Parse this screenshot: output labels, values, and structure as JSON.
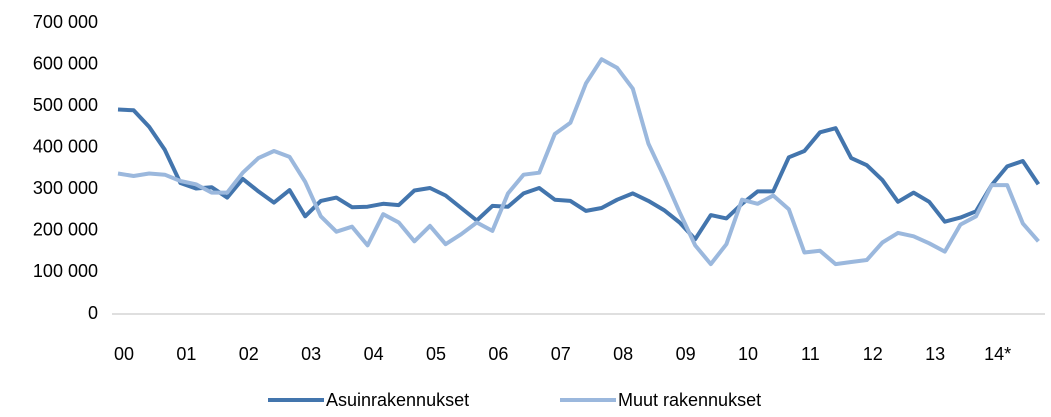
{
  "chart_data": {
    "type": "line",
    "categories": [
      "00",
      null,
      null,
      null,
      "01",
      null,
      null,
      null,
      "02",
      null,
      null,
      null,
      "03",
      null,
      null,
      null,
      "04",
      null,
      null,
      null,
      "05",
      null,
      null,
      null,
      "06",
      null,
      null,
      null,
      "07",
      null,
      null,
      null,
      "08",
      null,
      null,
      null,
      "09",
      null,
      null,
      null,
      "10",
      null,
      null,
      null,
      "11",
      null,
      null,
      null,
      "12",
      null,
      null,
      null,
      "13",
      null,
      null,
      null,
      "14*",
      null,
      null,
      null
    ],
    "series": [
      {
        "name": "Asuinrakennukset",
        "color": "#4375ad",
        "values": [
          492000,
          490000,
          450000,
          395000,
          315000,
          302000,
          305000,
          280000,
          325000,
          295000,
          268000,
          298000,
          235000,
          272000,
          280000,
          257000,
          258000,
          265000,
          262000,
          297000,
          303000,
          285000,
          255000,
          225000,
          260000,
          258000,
          290000,
          303000,
          275000,
          272000,
          248000,
          255000,
          275000,
          290000,
          272000,
          250000,
          220000,
          180000,
          238000,
          230000,
          265000,
          295000,
          295000,
          377000,
          392000,
          437000,
          447000,
          375000,
          358000,
          322000,
          270000,
          292000,
          270000,
          222000,
          232000,
          247000,
          310000,
          355000,
          368000,
          312000
        ]
      },
      {
        "name": "Muut rakennukset",
        "color": "#9bb8dd",
        "values": [
          338000,
          332000,
          338000,
          335000,
          320000,
          312000,
          292000,
          292000,
          340000,
          375000,
          392000,
          378000,
          318000,
          235000,
          198000,
          210000,
          165000,
          240000,
          220000,
          175000,
          212000,
          168000,
          192000,
          220000,
          200000,
          290000,
          335000,
          340000,
          433000,
          460000,
          555000,
          613000,
          592000,
          542000,
          410000,
          330000,
          245000,
          165000,
          120000,
          168000,
          275000,
          265000,
          285000,
          252000,
          148000,
          152000,
          120000,
          125000,
          130000,
          172000,
          195000,
          187000,
          170000,
          150000,
          215000,
          235000,
          310000,
          310000,
          218000,
          175000
        ]
      }
    ],
    "ylim": [
      0,
      700000
    ],
    "yticks": [
      0,
      {
        "value": 100000,
        "label": "100 000"
      },
      {
        "value": 200000,
        "label": "200 000"
      },
      {
        "value": 300000,
        "label": "300 000"
      },
      {
        "value": 400000,
        "label": "400 000"
      },
      {
        "value": 500000,
        "label": "500 000"
      },
      {
        "value": 600000,
        "label": "600 000"
      },
      {
        "value": 700000,
        "label": "700 000"
      }
    ],
    "grid": false,
    "legend": "bottom"
  }
}
